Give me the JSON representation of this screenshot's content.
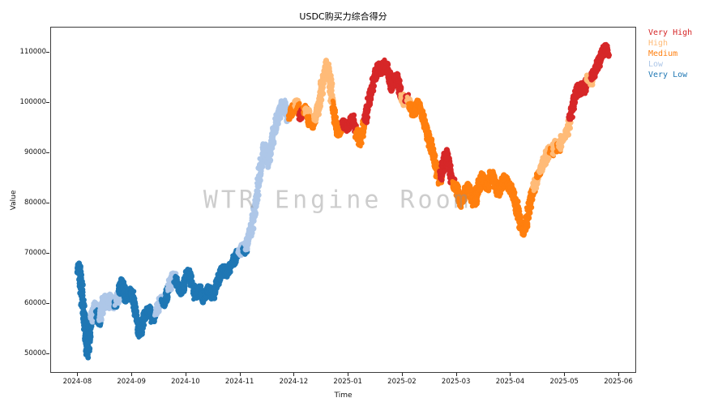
{
  "title": "USDC购买力综合得分",
  "watermark": "WTR Engine Room",
  "axes": {
    "xlabel": "Time",
    "ylabel": "Value",
    "x_tick_labels": [
      "2024-08",
      "2024-09",
      "2024-10",
      "2024-11",
      "2024-12",
      "2025-01",
      "2025-02",
      "2025-03",
      "2025-04",
      "2025-05",
      "2025-06"
    ],
    "y_tick_values": [
      50000,
      60000,
      70000,
      80000,
      90000,
      100000,
      110000
    ]
  },
  "legend": {
    "items": [
      {
        "label": "Very High",
        "key": "VH",
        "color": "#d62728"
      },
      {
        "label": "High",
        "key": "H",
        "color": "#ffbb78"
      },
      {
        "label": "Medium",
        "key": "M",
        "color": "#ff7f0e"
      },
      {
        "label": "Low",
        "key": "L",
        "color": "#aec7e8"
      },
      {
        "label": "Very Low",
        "key": "VL",
        "color": "#1f77b4"
      }
    ]
  },
  "chart_data": {
    "type": "scatter",
    "title": "USDC购买力综合得分",
    "xlabel": "Time",
    "ylabel": "Value",
    "x_unit": "months since 2024-08",
    "xlim": [
      -0.5,
      10.3
    ],
    "ylim": [
      46500,
      115000
    ],
    "grid": false,
    "legend_position": "outside-right",
    "x_tick_labels": [
      "2024-08",
      "2024-09",
      "2024-10",
      "2024-11",
      "2024-12",
      "2025-01",
      "2025-02",
      "2025-03",
      "2025-04",
      "2025-05",
      "2025-06"
    ],
    "y_ticks": [
      50000,
      60000,
      70000,
      80000,
      90000,
      100000,
      110000
    ],
    "colors": {
      "VH": "#d62728",
      "H": "#ffbb78",
      "M": "#ff7f0e",
      "L": "#aec7e8",
      "VL": "#1f77b4"
    },
    "categories": {
      "VH": "Very High",
      "H": "High",
      "M": "Medium",
      "L": "Low",
      "VL": "Very Low"
    },
    "points": [
      [
        0.0,
        67000,
        "VL"
      ],
      [
        0.02,
        67500,
        "VL"
      ],
      [
        0.04,
        65500,
        "VL"
      ],
      [
        0.06,
        63500,
        "VL"
      ],
      [
        0.08,
        61000,
        "VL"
      ],
      [
        0.1,
        58500,
        "VL"
      ],
      [
        0.12,
        56000,
        "VL"
      ],
      [
        0.14,
        53500,
        "VL"
      ],
      [
        0.16,
        51500,
        "VL"
      ],
      [
        0.18,
        50000,
        "VL"
      ],
      [
        0.2,
        53000,
        "VL"
      ],
      [
        0.22,
        56000,
        "VL"
      ],
      [
        0.24,
        57500,
        "VL"
      ],
      [
        0.26,
        57000,
        "L"
      ],
      [
        0.28,
        58500,
        "L"
      ],
      [
        0.3,
        60000,
        "L"
      ],
      [
        0.33,
        59000,
        "L"
      ],
      [
        0.36,
        57500,
        "VL"
      ],
      [
        0.39,
        56500,
        "VL"
      ],
      [
        0.42,
        58000,
        "L"
      ],
      [
        0.45,
        59500,
        "L"
      ],
      [
        0.48,
        61000,
        "L"
      ],
      [
        0.51,
        60500,
        "L"
      ],
      [
        0.54,
        59500,
        "L"
      ],
      [
        0.57,
        60500,
        "L"
      ],
      [
        0.6,
        61500,
        "L"
      ],
      [
        0.63,
        60500,
        "L"
      ],
      [
        0.66,
        59500,
        "L"
      ],
      [
        0.69,
        60000,
        "VL"
      ],
      [
        0.72,
        61000,
        "L"
      ],
      [
        0.75,
        62000,
        "L"
      ],
      [
        0.78,
        63000,
        "VL"
      ],
      [
        0.81,
        64500,
        "VL"
      ],
      [
        0.84,
        63500,
        "VL"
      ],
      [
        0.87,
        62000,
        "VL"
      ],
      [
        0.9,
        61000,
        "VL"
      ],
      [
        0.93,
        61500,
        "VL"
      ],
      [
        0.96,
        62500,
        "VL"
      ],
      [
        1.0,
        62000,
        "VL"
      ],
      [
        1.04,
        60000,
        "VL"
      ],
      [
        1.08,
        57500,
        "VL"
      ],
      [
        1.12,
        55000,
        "VL"
      ],
      [
        1.15,
        54000,
        "VL"
      ],
      [
        1.18,
        55500,
        "VL"
      ],
      [
        1.22,
        57500,
        "VL"
      ],
      [
        1.26,
        58500,
        "VL"
      ],
      [
        1.3,
        59000,
        "VL"
      ],
      [
        1.34,
        58000,
        "VL"
      ],
      [
        1.38,
        57000,
        "VL"
      ],
      [
        1.42,
        58000,
        "VL"
      ],
      [
        1.46,
        59000,
        "L"
      ],
      [
        1.5,
        60000,
        "L"
      ],
      [
        1.54,
        61000,
        "L"
      ],
      [
        1.58,
        60000,
        "VL"
      ],
      [
        1.62,
        61000,
        "VL"
      ],
      [
        1.66,
        62500,
        "VL"
      ],
      [
        1.7,
        64000,
        "L"
      ],
      [
        1.74,
        65000,
        "L"
      ],
      [
        1.78,
        65500,
        "L"
      ],
      [
        1.82,
        64500,
        "VL"
      ],
      [
        1.86,
        63000,
        "VL"
      ],
      [
        1.9,
        62500,
        "VL"
      ],
      [
        1.95,
        63500,
        "VL"
      ],
      [
        2.0,
        65500,
        "VL"
      ],
      [
        2.04,
        66500,
        "VL"
      ],
      [
        2.08,
        65000,
        "VL"
      ],
      [
        2.12,
        63000,
        "VL"
      ],
      [
        2.16,
        61500,
        "VL"
      ],
      [
        2.2,
        62000,
        "VL"
      ],
      [
        2.24,
        63000,
        "VL"
      ],
      [
        2.28,
        62000,
        "VL"
      ],
      [
        2.32,
        61000,
        "VL"
      ],
      [
        2.36,
        62000,
        "VL"
      ],
      [
        2.4,
        63000,
        "VL"
      ],
      [
        2.44,
        62500,
        "VL"
      ],
      [
        2.48,
        61500,
        "VL"
      ],
      [
        2.52,
        62500,
        "VL"
      ],
      [
        2.56,
        64000,
        "VL"
      ],
      [
        2.6,
        65000,
        "VL"
      ],
      [
        2.64,
        66000,
        "VL"
      ],
      [
        2.68,
        67000,
        "VL"
      ],
      [
        2.72,
        66000,
        "VL"
      ],
      [
        2.76,
        66500,
        "VL"
      ],
      [
        2.8,
        67500,
        "VL"
      ],
      [
        2.85,
        68000,
        "VL"
      ],
      [
        2.9,
        69000,
        "VL"
      ],
      [
        2.95,
        70000,
        "VL"
      ],
      [
        3.0,
        70500,
        "L"
      ],
      [
        3.04,
        71500,
        "L"
      ],
      [
        3.08,
        70500,
        "VL"
      ],
      [
        3.12,
        72000,
        "L"
      ],
      [
        3.16,
        73500,
        "L"
      ],
      [
        3.2,
        75000,
        "L"
      ],
      [
        3.24,
        77000,
        "L"
      ],
      [
        3.28,
        80000,
        "L"
      ],
      [
        3.32,
        83000,
        "L"
      ],
      [
        3.36,
        86000,
        "L"
      ],
      [
        3.4,
        89000,
        "L"
      ],
      [
        3.44,
        91500,
        "L"
      ],
      [
        3.48,
        89500,
        "L"
      ],
      [
        3.52,
        88000,
        "L"
      ],
      [
        3.56,
        90500,
        "L"
      ],
      [
        3.6,
        93000,
        "L"
      ],
      [
        3.64,
        95000,
        "L"
      ],
      [
        3.68,
        96500,
        "L"
      ],
      [
        3.72,
        98000,
        "L"
      ],
      [
        3.76,
        99500,
        "L"
      ],
      [
        3.8,
        100000,
        "L"
      ],
      [
        3.84,
        98500,
        "L"
      ],
      [
        3.88,
        97000,
        "L"
      ],
      [
        3.92,
        97500,
        "M"
      ],
      [
        3.96,
        98500,
        "M"
      ],
      [
        4.0,
        99000,
        "M"
      ],
      [
        4.04,
        100000,
        "H"
      ],
      [
        4.08,
        98500,
        "M"
      ],
      [
        4.12,
        97000,
        "VH"
      ],
      [
        4.16,
        98000,
        "VH"
      ],
      [
        4.2,
        99000,
        "M"
      ],
      [
        4.24,
        98000,
        "H"
      ],
      [
        4.28,
        96500,
        "M"
      ],
      [
        4.32,
        95500,
        "M"
      ],
      [
        4.36,
        96500,
        "M"
      ],
      [
        4.4,
        97500,
        "H"
      ],
      [
        4.44,
        99000,
        "H"
      ],
      [
        4.48,
        101500,
        "H"
      ],
      [
        4.52,
        104000,
        "H"
      ],
      [
        4.56,
        106500,
        "H"
      ],
      [
        4.6,
        108000,
        "H"
      ],
      [
        4.64,
        105500,
        "H"
      ],
      [
        4.68,
        101500,
        "H"
      ],
      [
        4.72,
        98500,
        "M"
      ],
      [
        4.76,
        96000,
        "M"
      ],
      [
        4.8,
        94000,
        "M"
      ],
      [
        4.84,
        94500,
        "M"
      ],
      [
        4.88,
        95500,
        "M"
      ],
      [
        4.92,
        96000,
        "VH"
      ],
      [
        4.96,
        95000,
        "VH"
      ],
      [
        5.0,
        95500,
        "VH"
      ],
      [
        5.04,
        96500,
        "VH"
      ],
      [
        5.08,
        97000,
        "VH"
      ],
      [
        5.12,
        95000,
        "VH"
      ],
      [
        5.16,
        93000,
        "M"
      ],
      [
        5.2,
        92000,
        "M"
      ],
      [
        5.24,
        93500,
        "M"
      ],
      [
        5.28,
        95500,
        "M"
      ],
      [
        5.32,
        97500,
        "VH"
      ],
      [
        5.36,
        99500,
        "VH"
      ],
      [
        5.4,
        101500,
        "VH"
      ],
      [
        5.44,
        103500,
        "VH"
      ],
      [
        5.48,
        105000,
        "VH"
      ],
      [
        5.52,
        106500,
        "VH"
      ],
      [
        5.56,
        107500,
        "VH"
      ],
      [
        5.6,
        106000,
        "VH"
      ],
      [
        5.64,
        107000,
        "VH"
      ],
      [
        5.68,
        108000,
        "VH"
      ],
      [
        5.72,
        106500,
        "VH"
      ],
      [
        5.76,
        104500,
        "VH"
      ],
      [
        5.8,
        103000,
        "VH"
      ],
      [
        5.84,
        104500,
        "VH"
      ],
      [
        5.88,
        105500,
        "VH"
      ],
      [
        5.92,
        103500,
        "VH"
      ],
      [
        5.96,
        101500,
        "VH"
      ],
      [
        6.0,
        101000,
        "H"
      ],
      [
        6.04,
        100000,
        "H"
      ],
      [
        6.08,
        101000,
        "VH"
      ],
      [
        6.12,
        100000,
        "H"
      ],
      [
        6.16,
        99000,
        "M"
      ],
      [
        6.2,
        98000,
        "M"
      ],
      [
        6.24,
        99000,
        "M"
      ],
      [
        6.28,
        100000,
        "M"
      ],
      [
        6.32,
        99000,
        "M"
      ],
      [
        6.36,
        97500,
        "M"
      ],
      [
        6.4,
        96000,
        "M"
      ],
      [
        6.44,
        94500,
        "M"
      ],
      [
        6.48,
        93000,
        "M"
      ],
      [
        6.52,
        91500,
        "M"
      ],
      [
        6.56,
        90000,
        "M"
      ],
      [
        6.6,
        88000,
        "M"
      ],
      [
        6.64,
        86000,
        "M"
      ],
      [
        6.68,
        84500,
        "M"
      ],
      [
        6.72,
        86000,
        "VH"
      ],
      [
        6.76,
        88000,
        "VH"
      ],
      [
        6.8,
        90000,
        "VH"
      ],
      [
        6.84,
        88500,
        "VH"
      ],
      [
        6.88,
        86500,
        "VH"
      ],
      [
        6.92,
        84500,
        "VH"
      ],
      [
        6.96,
        83500,
        "M"
      ],
      [
        7.0,
        83000,
        "M"
      ],
      [
        7.04,
        81500,
        "M"
      ],
      [
        7.08,
        80000,
        "M"
      ],
      [
        7.12,
        81000,
        "M"
      ],
      [
        7.16,
        82500,
        "M"
      ],
      [
        7.2,
        83500,
        "M"
      ],
      [
        7.24,
        82500,
        "M"
      ],
      [
        7.28,
        81000,
        "M"
      ],
      [
        7.32,
        80000,
        "M"
      ],
      [
        7.36,
        81500,
        "M"
      ],
      [
        7.4,
        83000,
        "M"
      ],
      [
        7.44,
        84500,
        "M"
      ],
      [
        7.48,
        85500,
        "M"
      ],
      [
        7.52,
        84000,
        "M"
      ],
      [
        7.56,
        83000,
        "M"
      ],
      [
        7.6,
        84500,
        "M"
      ],
      [
        7.64,
        86000,
        "M"
      ],
      [
        7.68,
        85000,
        "M"
      ],
      [
        7.72,
        83500,
        "M"
      ],
      [
        7.76,
        82000,
        "M"
      ],
      [
        7.8,
        83000,
        "M"
      ],
      [
        7.84,
        84000,
        "M"
      ],
      [
        7.88,
        85000,
        "M"
      ],
      [
        7.92,
        84500,
        "M"
      ],
      [
        7.96,
        83500,
        "M"
      ],
      [
        8.0,
        83000,
        "M"
      ],
      [
        8.04,
        82000,
        "M"
      ],
      [
        8.08,
        80500,
        "M"
      ],
      [
        8.12,
        78500,
        "M"
      ],
      [
        8.16,
        76500,
        "M"
      ],
      [
        8.2,
        75000,
        "M"
      ],
      [
        8.24,
        74500,
        "M"
      ],
      [
        8.28,
        76000,
        "M"
      ],
      [
        8.32,
        78500,
        "M"
      ],
      [
        8.36,
        80500,
        "M"
      ],
      [
        8.4,
        82000,
        "M"
      ],
      [
        8.44,
        83500,
        "H"
      ],
      [
        8.48,
        85000,
        "H"
      ],
      [
        8.52,
        86000,
        "M"
      ],
      [
        8.56,
        87000,
        "H"
      ],
      [
        8.6,
        88000,
        "H"
      ],
      [
        8.64,
        89000,
        "H"
      ],
      [
        8.68,
        90000,
        "H"
      ],
      [
        8.72,
        91000,
        "H"
      ],
      [
        8.76,
        90000,
        "M"
      ],
      [
        8.8,
        91000,
        "H"
      ],
      [
        8.84,
        92000,
        "H"
      ],
      [
        8.88,
        91000,
        "M"
      ],
      [
        8.92,
        92000,
        "H"
      ],
      [
        8.96,
        93000,
        "H"
      ],
      [
        9.0,
        93500,
        "H"
      ],
      [
        9.04,
        94500,
        "H"
      ],
      [
        9.08,
        96000,
        "H"
      ],
      [
        9.12,
        98000,
        "VH"
      ],
      [
        9.16,
        100000,
        "VH"
      ],
      [
        9.2,
        101500,
        "VH"
      ],
      [
        9.24,
        103000,
        "VH"
      ],
      [
        9.28,
        102000,
        "VH"
      ],
      [
        9.32,
        103500,
        "VH"
      ],
      [
        9.36,
        102500,
        "VH"
      ],
      [
        9.4,
        104000,
        "VH"
      ],
      [
        9.44,
        105000,
        "H"
      ],
      [
        9.48,
        104000,
        "H"
      ],
      [
        9.52,
        105500,
        "VH"
      ],
      [
        9.56,
        106500,
        "VH"
      ],
      [
        9.6,
        107500,
        "VH"
      ],
      [
        9.64,
        108500,
        "VH"
      ],
      [
        9.68,
        109500,
        "VH"
      ],
      [
        9.72,
        110500,
        "VH"
      ],
      [
        9.76,
        111000,
        "VH"
      ],
      [
        9.8,
        109500,
        "VH"
      ]
    ]
  }
}
